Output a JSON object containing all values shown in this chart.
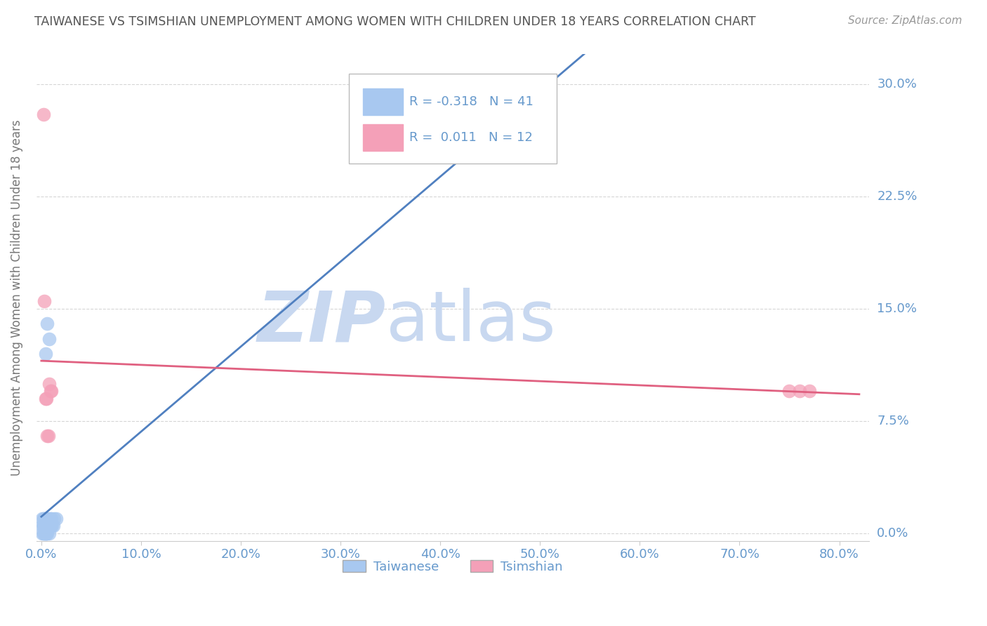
{
  "title": "TAIWANESE VS TSIMSHIAN UNEMPLOYMENT AMONG WOMEN WITH CHILDREN UNDER 18 YEARS CORRELATION CHART",
  "source": "Source: ZipAtlas.com",
  "ylabel": "Unemployment Among Women with Children Under 18 years",
  "xlabel_ticks": [
    "0.0%",
    "10.0%",
    "20.0%",
    "30.0%",
    "40.0%",
    "50.0%",
    "60.0%",
    "70.0%",
    "80.0%"
  ],
  "xlabel_vals": [
    0.0,
    0.1,
    0.2,
    0.3,
    0.4,
    0.5,
    0.6,
    0.7,
    0.8
  ],
  "ytick_labels": [
    "0.0%",
    "7.5%",
    "15.0%",
    "22.5%",
    "30.0%"
  ],
  "ytick_vals": [
    0.0,
    0.075,
    0.15,
    0.225,
    0.3
  ],
  "xlim": [
    -0.005,
    0.83
  ],
  "ylim": [
    -0.005,
    0.32
  ],
  "taiwanese_x": [
    0.001,
    0.001,
    0.001,
    0.002,
    0.002,
    0.002,
    0.002,
    0.003,
    0.003,
    0.003,
    0.003,
    0.003,
    0.003,
    0.004,
    0.004,
    0.004,
    0.004,
    0.004,
    0.005,
    0.005,
    0.005,
    0.005,
    0.005,
    0.006,
    0.006,
    0.006,
    0.006,
    0.007,
    0.007,
    0.007,
    0.008,
    0.008,
    0.008,
    0.009,
    0.009,
    0.01,
    0.01,
    0.011,
    0.012,
    0.013,
    0.015
  ],
  "taiwanese_y": [
    0.0,
    0.005,
    0.01,
    0.0,
    0.005,
    0.005,
    0.01,
    0.0,
    0.0,
    0.005,
    0.005,
    0.01,
    0.01,
    0.0,
    0.005,
    0.005,
    0.01,
    0.12,
    0.0,
    0.0,
    0.005,
    0.005,
    0.01,
    0.0,
    0.005,
    0.005,
    0.14,
    0.005,
    0.005,
    0.01,
    0.0,
    0.005,
    0.13,
    0.005,
    0.01,
    0.005,
    0.01,
    0.005,
    0.005,
    0.01,
    0.01
  ],
  "tsimshian_x": [
    0.002,
    0.003,
    0.004,
    0.005,
    0.006,
    0.007,
    0.008,
    0.009,
    0.01,
    0.75,
    0.76,
    0.77
  ],
  "tsimshian_y": [
    0.28,
    0.155,
    0.09,
    0.09,
    0.065,
    0.065,
    0.1,
    0.095,
    0.095,
    0.095,
    0.095,
    0.095
  ],
  "taiwanese_R": "-0.318",
  "taiwanese_N": "41",
  "tsimshian_R": "0.011",
  "tsimshian_N": "12",
  "taiwanese_color": "#A8C8F0",
  "tsimshian_color": "#F4A0B8",
  "taiwanese_line_color": "#5080C0",
  "tsimshian_line_color": "#E06080",
  "background_color": "#FFFFFF",
  "grid_color": "#CCCCCC",
  "watermark_zip_color": "#C8D8F0",
  "watermark_atlas_color": "#C8D8F0",
  "title_color": "#555555",
  "tick_label_color": "#6699CC",
  "source_color": "#999999",
  "legend_border_color": "#BBBBBB"
}
